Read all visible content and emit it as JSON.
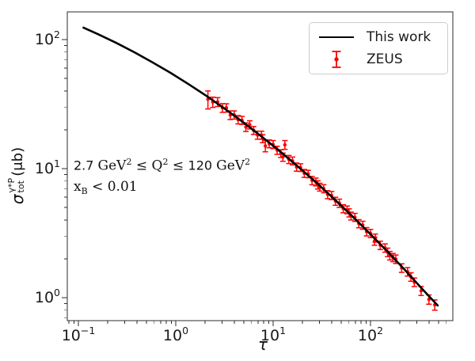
{
  "figure": {
    "background": "#ffffff",
    "xlabel": "τ",
    "ylabel": {
      "sigma": "σ",
      "sup": "γ*P",
      "sub": "tot",
      "unit": "(μb)"
    },
    "legend": {
      "position": "upper right",
      "items": [
        {
          "label": "This work",
          "marker": "line",
          "color": "#000000"
        },
        {
          "label": "ZEUS",
          "marker": "errorbar",
          "color": "#ff0000"
        }
      ]
    },
    "annotation": {
      "line1_parts": [
        {
          "text": "2.7 "
        },
        {
          "text": "GeV"
        },
        {
          "text": "2"
        },
        {
          "text": " ≤ "
        },
        {
          "text": "Q"
        },
        {
          "text": "2"
        },
        {
          "text": " ≤ "
        },
        {
          "text": "120 "
        },
        {
          "text": "GeV"
        },
        {
          "text": "2"
        }
      ],
      "line2_parts": [
        {
          "text": "x"
        },
        {
          "text": "B"
        },
        {
          "text": " < 0.01"
        }
      ]
    },
    "colors": {
      "curve": "#000000",
      "data": "#ff0000",
      "spine": "#2b2b2b",
      "text": "#1a1a1a"
    }
  },
  "chart_data": {
    "type": "line+scatter",
    "xscale": "log",
    "yscale": "log",
    "title": "",
    "xlabel": "τ",
    "ylabel": "σ_tot^{γ*P} (μb)",
    "xlim": [
      0.077,
      700
    ],
    "ylim": [
      0.664,
      164
    ],
    "grid": false,
    "legend_position": "upper right",
    "annotations": [
      "2.7 GeV² ≤ Q² ≤ 120 GeV²",
      "x_B < 0.01"
    ],
    "x_ticks": [
      {
        "value": 0.1,
        "exp": "−1"
      },
      {
        "value": 1,
        "exp": "0"
      },
      {
        "value": 10,
        "exp": "1"
      },
      {
        "value": 100,
        "exp": "2"
      }
    ],
    "y_ticks": [
      {
        "value": 1,
        "exp": "0"
      },
      {
        "value": 10,
        "exp": "1"
      },
      {
        "value": 100,
        "exp": "2"
      }
    ],
    "series": [
      {
        "name": "This work",
        "type": "line",
        "color": "#000000",
        "x": [
          0.113,
          0.16,
          0.245,
          0.376,
          0.575,
          0.881,
          1.35,
          2.07,
          3.16,
          4.84,
          7.41,
          11.4,
          17.4,
          26.6,
          40.7,
          62.4,
          95.5,
          146,
          224,
          343,
          490
        ],
        "y": [
          123.8,
          109.9,
          94.2,
          79.8,
          66.8,
          55.3,
          45.2,
          36.6,
          29.2,
          23.1,
          18.0,
          13.9,
          10.6,
          8.02,
          5.98,
          4.41,
          3.21,
          2.32,
          1.65,
          1.16,
          0.87
        ]
      },
      {
        "name": "ZEUS",
        "type": "errorbar",
        "color": "#ff0000",
        "points": [
          [
            2.14,
            34.5,
            5.5
          ],
          [
            2.4,
            32.8,
            3.0
          ],
          [
            2.69,
            32.9,
            2.6
          ],
          [
            3.02,
            29.6,
            2.3
          ],
          [
            3.31,
            29.6,
            2.2
          ],
          [
            3.63,
            26.0,
            2.0
          ],
          [
            3.98,
            26.1,
            1.9
          ],
          [
            4.37,
            24.0,
            1.8
          ],
          [
            4.79,
            23.7,
            1.7
          ],
          [
            5.25,
            21.0,
            1.6
          ],
          [
            5.75,
            21.9,
            1.6
          ],
          [
            6.31,
            19.8,
            1.4
          ],
          [
            6.92,
            18.2,
            1.3
          ],
          [
            7.59,
            18.2,
            1.3
          ],
          [
            7.8,
            17.1,
            1.2
          ],
          [
            8.32,
            15.0,
            1.5
          ],
          [
            9.12,
            15.6,
            1.1
          ],
          [
            10.0,
            15.4,
            1.1
          ],
          [
            11.0,
            13.9,
            1.0
          ],
          [
            12.0,
            13.1,
            0.9
          ],
          [
            12.6,
            12.3,
            0.9
          ],
          [
            13.2,
            15.3,
            1.2
          ],
          [
            14.5,
            11.8,
            0.85
          ],
          [
            15.8,
            11.5,
            0.8
          ],
          [
            17.4,
            10.3,
            0.75
          ],
          [
            19.1,
            10.2,
            0.7
          ],
          [
            20.9,
            9.2,
            0.65
          ],
          [
            22.9,
            9.1,
            0.6
          ],
          [
            25.1,
            8.1,
            0.6
          ],
          [
            27.5,
            7.9,
            0.55
          ],
          [
            28.8,
            7.5,
            0.55
          ],
          [
            30.2,
            7.2,
            0.5
          ],
          [
            33.1,
            7.0,
            0.5
          ],
          [
            36.3,
            6.3,
            0.45
          ],
          [
            39.8,
            6.2,
            0.45
          ],
          [
            43.7,
            5.6,
            0.4
          ],
          [
            47.9,
            5.4,
            0.4
          ],
          [
            52.5,
            4.9,
            0.35
          ],
          [
            57.5,
            4.8,
            0.33
          ],
          [
            60.3,
            4.55,
            0.33
          ],
          [
            63.1,
            4.3,
            0.3
          ],
          [
            69.2,
            4.2,
            0.3
          ],
          [
            75.9,
            3.75,
            0.27
          ],
          [
            83.2,
            3.65,
            0.26
          ],
          [
            91.2,
            3.25,
            0.24
          ],
          [
            100,
            3.15,
            0.23
          ],
          [
            110,
            2.75,
            0.2
          ],
          [
            112,
            2.9,
            0.21
          ],
          [
            126,
            2.55,
            0.19
          ],
          [
            141,
            2.43,
            0.18
          ],
          [
            150,
            2.25,
            0.17
          ],
          [
            158,
            2.12,
            0.16
          ],
          [
            170,
            2.05,
            0.15
          ],
          [
            182,
            1.99,
            0.15
          ],
          [
            209,
            1.7,
            0.13
          ],
          [
            240,
            1.59,
            0.12
          ],
          [
            260,
            1.45,
            0.11
          ],
          [
            282,
            1.32,
            0.1
          ],
          [
            331,
            1.13,
            0.09
          ],
          [
            398,
            0.97,
            0.08
          ],
          [
            457,
            0.88,
            0.08
          ]
        ]
      }
    ]
  }
}
